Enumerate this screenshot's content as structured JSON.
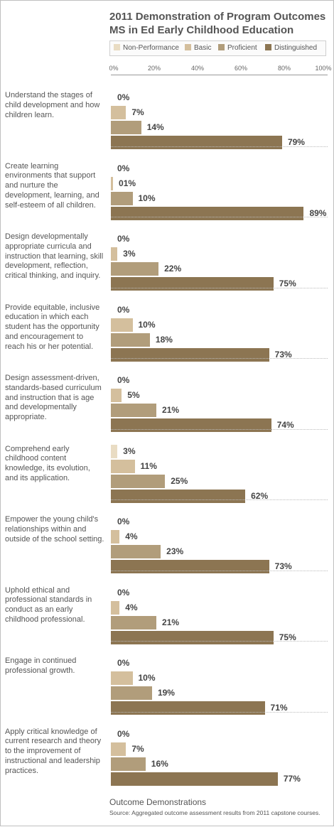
{
  "chart_data": {
    "type": "bar",
    "orientation": "horizontal",
    "title": "2011 Demonstration of Program Outcomes",
    "subtitle": "MS in Ed Early Childhood Education",
    "xlabel": "Outcome Demonstrations",
    "source": "Source: Aggregated outcome assessment results from 2011 capstone courses.",
    "xlim": [
      0,
      100
    ],
    "x_ticks": [
      "0%",
      "20%",
      "40%",
      "60%",
      "80%",
      "100%"
    ],
    "legend_position": "top",
    "categories": [
      "Understand the stages of child development and how children learn.",
      "Create learning environments that support and nurture the development, learning, and self-esteem of all children.",
      "Design developmentally appropriate curricula and instruction that learning, skill development, reflection, critical thinking, and inquiry.",
      "Provide equitable, inclusive education in which each student has the opportunity and encouragement to reach his or her potential.",
      "Design assessment-driven, standards-based curriculum and instruction that is age and developmentally appropriate.",
      "Comprehend early childhood content knowledge, its evolution, and its application.",
      "Empower the young child's relationships within and outside of the school setting.",
      "Uphold ethical and professional standards in conduct as an early childhood professional.",
      "Engage in continued professional growth.",
      "Apply critical knowledge of current research and theory to the improvement of instructional and leadership practices."
    ],
    "series": [
      {
        "name": "Non-Performance",
        "color": "#e9dcc3",
        "values": [
          0,
          0,
          0,
          0,
          0,
          3,
          0,
          0,
          0,
          0
        ],
        "labels": [
          "0%",
          "0%",
          "0%",
          "0%",
          "0%",
          "3%",
          "0%",
          "0%",
          "0%",
          "0%"
        ]
      },
      {
        "name": "Basic",
        "color": "#d4bf9d",
        "values": [
          7,
          1,
          3,
          10,
          5,
          11,
          4,
          4,
          10,
          7
        ],
        "labels": [
          "7%",
          "01%",
          "3%",
          "10%",
          "5%",
          "11%",
          "4%",
          "4%",
          "10%",
          "7%"
        ]
      },
      {
        "name": "Proficient",
        "color": "#b19d7b",
        "values": [
          14,
          10,
          22,
          18,
          21,
          25,
          23,
          21,
          19,
          16
        ],
        "labels": [
          "14%",
          "10%",
          "22%",
          "18%",
          "21%",
          "25%",
          "23%",
          "21%",
          "19%",
          "16%"
        ]
      },
      {
        "name": "Distinguished",
        "color": "#8c7552",
        "values": [
          79,
          89,
          75,
          73,
          74,
          62,
          73,
          75,
          71,
          77
        ],
        "labels": [
          "79%",
          "89%",
          "75%",
          "73%",
          "74%",
          "62%",
          "73%",
          "75%",
          "71%",
          "77%"
        ]
      }
    ]
  }
}
